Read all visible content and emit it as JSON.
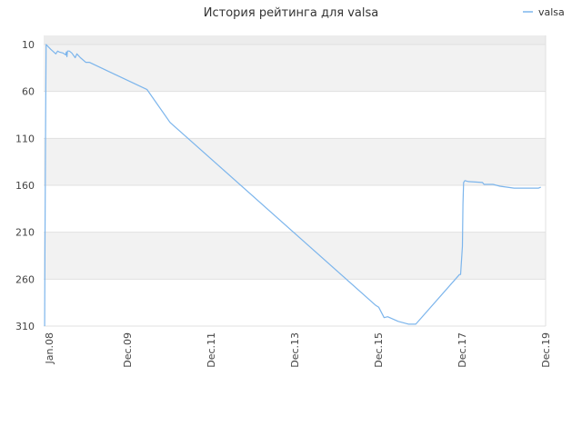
{
  "chart_data": {
    "type": "line",
    "title": "История рейтинга для valsa",
    "legend": {
      "position": "top-right",
      "entries": [
        "valsa"
      ]
    },
    "grid": true,
    "y_axis": {
      "inverted": true,
      "ylim": [
        10,
        310
      ],
      "ticks": [
        10,
        60,
        110,
        160,
        210,
        260,
        310
      ]
    },
    "x_axis": {
      "xlim": [
        "2008-01",
        "2019-12"
      ],
      "tick_labels": [
        "Jan.08",
        "Dec.09",
        "Dec.11",
        "Dec.13",
        "Dec.15",
        "Dec.17",
        "Dec.19"
      ]
    },
    "colors": {
      "series": "#7cb5ec",
      "band": "#f2f2f2",
      "grid": "#e0e0e0"
    },
    "series": [
      {
        "name": "valsa",
        "points": [
          [
            "2008-01-10",
            310
          ],
          [
            "2008-01-12",
            235
          ],
          [
            "2008-01-18",
            85
          ],
          [
            "2008-01-22",
            10
          ],
          [
            "2008-03-01",
            15
          ],
          [
            "2008-04-15",
            20
          ],
          [
            "2008-05-01",
            17
          ],
          [
            "2008-05-15",
            18
          ],
          [
            "2008-06-15",
            19
          ],
          [
            "2008-07-10",
            21
          ],
          [
            "2008-07-15",
            18
          ],
          [
            "2008-07-20",
            23
          ],
          [
            "2008-07-25",
            17
          ],
          [
            "2008-08-10",
            17
          ],
          [
            "2008-09-01",
            19
          ],
          [
            "2008-10-01",
            24
          ],
          [
            "2008-10-15",
            20
          ],
          [
            "2008-11-15",
            24
          ],
          [
            "2009-01-01",
            29
          ],
          [
            "2009-02-01",
            29
          ],
          [
            "2010-06-15",
            58
          ],
          [
            "2011-01-01",
            93
          ],
          [
            "2015-11-20",
            288
          ],
          [
            "2015-12-15",
            290
          ],
          [
            "2016-02-01",
            301
          ],
          [
            "2016-03-01",
            300
          ],
          [
            "2016-06-01",
            305
          ],
          [
            "2016-09-01",
            308
          ],
          [
            "2016-11-01",
            308
          ],
          [
            "2017-11-15",
            255
          ],
          [
            "2017-11-25",
            255
          ],
          [
            "2017-12-10",
            225
          ],
          [
            "2017-12-15",
            180
          ],
          [
            "2017-12-20",
            157
          ],
          [
            "2018-01-01",
            155
          ],
          [
            "2018-02-01",
            156
          ],
          [
            "2018-06-01",
            157
          ],
          [
            "2018-06-15",
            159
          ],
          [
            "2018-09-01",
            159
          ],
          [
            "2018-11-01",
            161
          ],
          [
            "2019-03-01",
            163
          ],
          [
            "2019-10-01",
            163
          ],
          [
            "2019-10-20",
            162
          ]
        ]
      }
    ]
  }
}
